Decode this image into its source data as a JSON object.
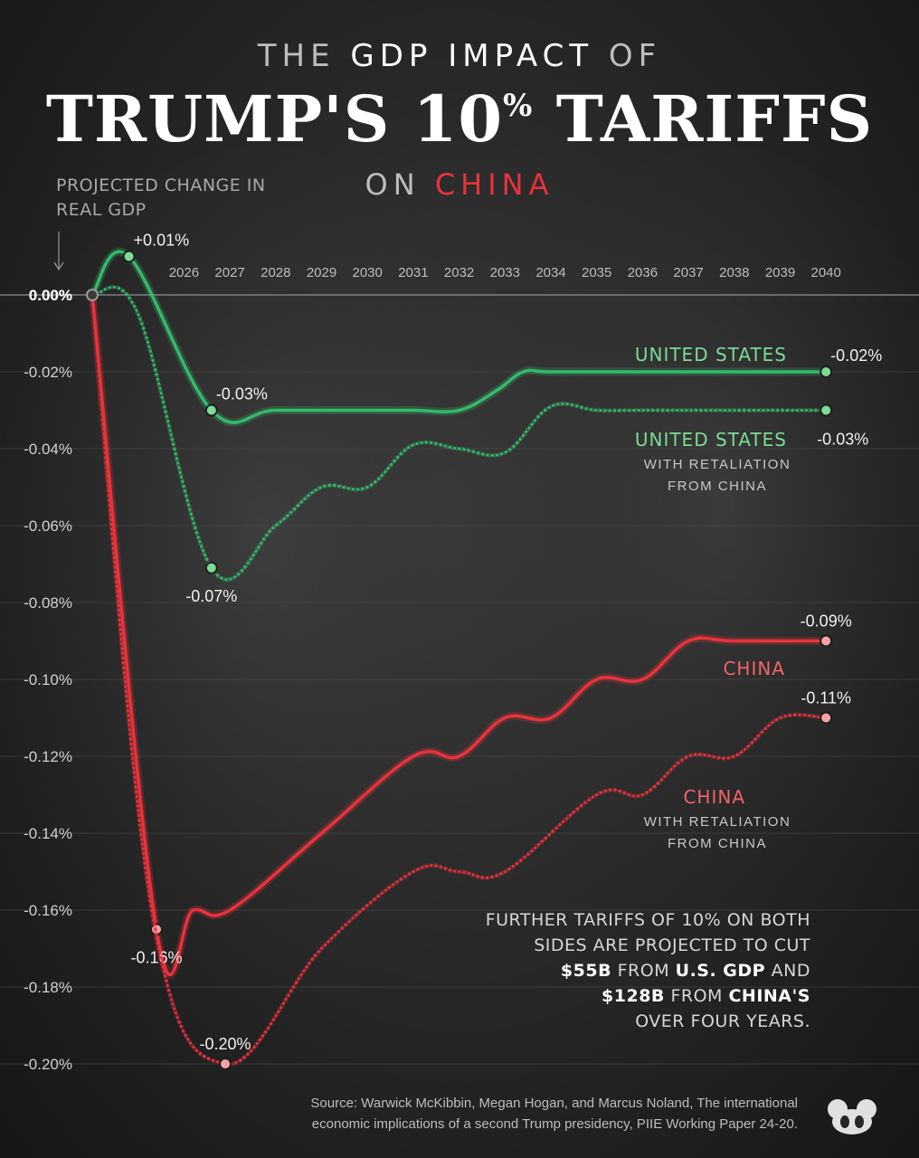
{
  "title": {
    "line1_pre": "THE",
    "line1_highlight": "GDP IMPACT",
    "line1_post": "OF",
    "line2_main": "TRUMP'S 10",
    "line2_sup": "%",
    "line2_end": " TARIFFS",
    "line3_pre": "ON",
    "line3_highlight": "CHINA"
  },
  "y_axis_label": "PROJECTED CHANGE IN REAL GDP",
  "annotation": {
    "line1": "FURTHER TARIFFS OF 10% ON BOTH",
    "line2": "SIDES ARE PROJECTED TO CUT",
    "line3_bold1": "$55B",
    "line3_text": " FROM ",
    "line3_bold2": "U.S. GDP",
    "line3_end": " AND",
    "line4_bold1": "$128B",
    "line4_text": " FROM ",
    "line4_bold2": "CHINA'S",
    "line5": "OVER FOUR YEARS."
  },
  "source": {
    "line1": "Source: Warwick McKibbin, Megan Hogan, and Marcus Noland, The international",
    "line2": "economic implications of a second Trump presidency, PIIE Working Paper 24-20."
  },
  "colors": {
    "us": "#35b96a",
    "china": "#e8323c",
    "us_marker": "#7cdb94",
    "china_marker": "#f6a3a6",
    "start_marker": "#3a3a3a"
  },
  "chart_data": {
    "type": "line",
    "ylabel": "PROJECTED CHANGE IN REAL GDP",
    "ylim": [
      -0.2,
      0
    ],
    "yticks": [
      0,
      -0.02,
      -0.04,
      -0.06,
      -0.08,
      -0.1,
      -0.12,
      -0.14,
      -0.16,
      -0.18,
      -0.2
    ],
    "ytick_labels": [
      "0.00%",
      "-0.02%",
      "-0.04%",
      "-0.06%",
      "-0.08%",
      "-0.10%",
      "-0.12%",
      "-0.14%",
      "-0.16%",
      "-0.18%",
      "-0.20%"
    ],
    "x": [
      2024,
      2025,
      2026,
      2027,
      2028,
      2029,
      2030,
      2031,
      2032,
      2033,
      2034,
      2035,
      2036,
      2037,
      2038,
      2039,
      2040
    ],
    "xtick_labels": [
      "2026",
      "2027",
      "2028",
      "2029",
      "2030",
      "2031",
      "2032",
      "2033",
      "2034",
      "2035",
      "2036",
      "2037",
      "2038",
      "2039",
      "2040"
    ],
    "series": [
      {
        "name": "UNITED STATES",
        "sublabel": "",
        "style": "solid",
        "color": "#35b96a",
        "x": [
          2024,
          2024.8,
          2026.6,
          2028,
          2030,
          2031,
          2032,
          2032.8,
          2033.4,
          2034,
          2036,
          2038,
          2040
        ],
        "values": [
          0,
          0.01,
          -0.03,
          -0.03,
          -0.03,
          -0.03,
          -0.03,
          -0.025,
          -0.02,
          -0.02,
          -0.02,
          -0.02,
          -0.02
        ],
        "labeled_points": [
          {
            "index": 1,
            "label": "+0.01%",
            "side": "right-up"
          },
          {
            "index": 2,
            "label": "-0.03%",
            "side": "right-up"
          },
          {
            "index": 12,
            "label": "-0.02%",
            "side": "right-up"
          }
        ]
      },
      {
        "name": "UNITED STATES",
        "sublabel": "WITH RETALIATION FROM CHINA",
        "style": "dotted",
        "color": "#35b96a",
        "x": [
          2024,
          2025,
          2026.6,
          2028,
          2029,
          2030,
          2031,
          2032,
          2033,
          2034,
          2035,
          2036,
          2038,
          2040
        ],
        "values": [
          0,
          -0.005,
          -0.071,
          -0.06,
          -0.05,
          -0.05,
          -0.039,
          -0.04,
          -0.041,
          -0.029,
          -0.03,
          -0.03,
          -0.03,
          -0.03
        ],
        "labeled_points": [
          {
            "index": 2,
            "label": "-0.07%",
            "side": "below"
          },
          {
            "index": 13,
            "label": "-0.03%",
            "side": "right-down"
          }
        ]
      },
      {
        "name": "CHINA",
        "sublabel": "",
        "style": "solid",
        "color": "#e8323c",
        "x": [
          2024,
          2025.4,
          2026.2,
          2027,
          2029,
          2031,
          2032,
          2033,
          2034,
          2035,
          2036,
          2037,
          2038,
          2040
        ],
        "values": [
          0,
          -0.165,
          -0.16,
          -0.16,
          -0.14,
          -0.12,
          -0.12,
          -0.11,
          -0.11,
          -0.1,
          -0.1,
          -0.09,
          -0.09,
          -0.09
        ],
        "labeled_points": [
          {
            "index": 1,
            "label": "-0.16%",
            "side": "below"
          },
          {
            "index": 13,
            "label": "-0.09%",
            "side": "above"
          }
        ]
      },
      {
        "name": "CHINA",
        "sublabel": "WITH RETALIATION FROM CHINA",
        "style": "dotted",
        "color": "#e8323c",
        "x": [
          2024,
          2025.3,
          2026.9,
          2029,
          2031,
          2032,
          2033,
          2035,
          2036,
          2037,
          2038,
          2039,
          2040
        ],
        "values": [
          0,
          -0.16,
          -0.2,
          -0.17,
          -0.15,
          -0.15,
          -0.15,
          -0.13,
          -0.13,
          -0.12,
          -0.12,
          -0.11,
          -0.11
        ],
        "labeled_points": [
          {
            "index": 2,
            "label": "-0.20%",
            "side": "above"
          },
          {
            "index": 12,
            "label": "-0.11%",
            "side": "above"
          }
        ]
      }
    ],
    "extra_labels": [
      {
        "text": "0.00%",
        "at": "origin"
      }
    ]
  }
}
